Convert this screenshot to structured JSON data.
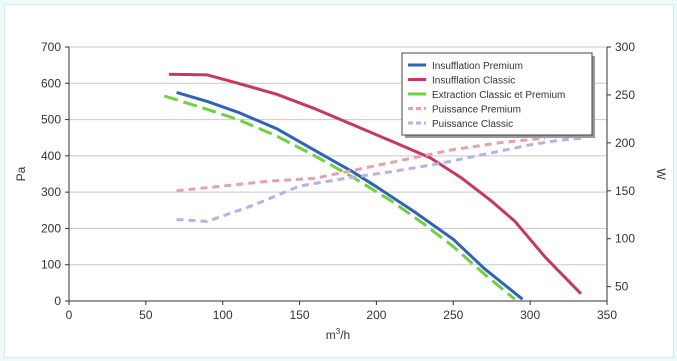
{
  "chart_data": {
    "type": "line",
    "title": "",
    "xlabel": "m³/h",
    "ylabel_left": "Pa",
    "ylabel_right": "W",
    "xlim": [
      0,
      350
    ],
    "ylim_left": [
      0,
      700
    ],
    "ylim_right": [
      35,
      300
    ],
    "x_ticks": [
      "0",
      "50",
      "100",
      "150",
      "200",
      "250",
      "300",
      "350"
    ],
    "y_left_ticks": [
      "0",
      "100",
      "200",
      "300",
      "400",
      "500",
      "600",
      "700"
    ],
    "y_right_ticks": [
      "50",
      "100",
      "150",
      "200",
      "250",
      "300"
    ],
    "grid": "horizontal",
    "legend_position": "top-right",
    "series": [
      {
        "name": "Insufflation Premium",
        "axis": "left",
        "color": "#2f63b8",
        "dash": "solid",
        "points": [
          [
            70,
            575
          ],
          [
            90,
            550
          ],
          [
            110,
            520
          ],
          [
            135,
            475
          ],
          [
            160,
            415
          ],
          [
            185,
            355
          ],
          [
            200,
            315
          ],
          [
            225,
            245
          ],
          [
            250,
            170
          ],
          [
            270,
            90
          ],
          [
            295,
            5
          ]
        ]
      },
      {
        "name": "Insufflation Classic",
        "axis": "left",
        "color": "#c7385c",
        "dash": "solid",
        "points": [
          [
            65,
            625
          ],
          [
            90,
            623
          ],
          [
            110,
            600
          ],
          [
            135,
            570
          ],
          [
            160,
            530
          ],
          [
            185,
            485
          ],
          [
            210,
            440
          ],
          [
            235,
            395
          ],
          [
            255,
            340
          ],
          [
            275,
            275
          ],
          [
            290,
            220
          ],
          [
            310,
            120
          ],
          [
            333,
            20
          ]
        ]
      },
      {
        "name": "Extraction Classic et Premium",
        "axis": "left",
        "color": "#6ed23c",
        "dash": "long",
        "points": [
          [
            62,
            565
          ],
          [
            85,
            535
          ],
          [
            110,
            500
          ],
          [
            135,
            455
          ],
          [
            160,
            400
          ],
          [
            185,
            340
          ],
          [
            210,
            275
          ],
          [
            230,
            215
          ],
          [
            250,
            150
          ],
          [
            270,
            75
          ],
          [
            290,
            5
          ]
        ]
      },
      {
        "name": "Puissance Premium",
        "axis": "right",
        "color": "#e8a0aa",
        "dash": "short",
        "points": [
          [
            70,
            150
          ],
          [
            100,
            155
          ],
          [
            130,
            160
          ],
          [
            160,
            163
          ],
          [
            190,
            173
          ],
          [
            220,
            183
          ],
          [
            250,
            193
          ],
          [
            280,
            200
          ],
          [
            310,
            205
          ]
        ]
      },
      {
        "name": "Puissance Classic",
        "axis": "right",
        "color": "#b9b0e6",
        "dash": "short",
        "points": [
          [
            70,
            120
          ],
          [
            90,
            118
          ],
          [
            120,
            135
          ],
          [
            150,
            155
          ],
          [
            180,
            163
          ],
          [
            210,
            170
          ],
          [
            240,
            178
          ],
          [
            270,
            188
          ],
          [
            300,
            198
          ],
          [
            320,
            203
          ],
          [
            335,
            205
          ]
        ]
      }
    ]
  }
}
